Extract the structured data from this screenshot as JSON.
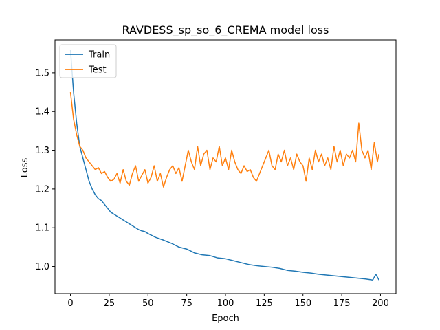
{
  "chart_data": {
    "type": "line",
    "title": "RAVDESS_sp_so_6_CREMA model loss",
    "xlabel": "Epoch",
    "ylabel": "Loss",
    "xlim": [
      -10,
      210
    ],
    "ylim": [
      0.93,
      1.585
    ],
    "xticks": [
      0,
      25,
      50,
      75,
      100,
      125,
      150,
      175,
      200
    ],
    "yticks": [
      1.0,
      1.1,
      1.2,
      1.3,
      1.4,
      1.5
    ],
    "grid": false,
    "legend_position": "upper-left",
    "series": [
      {
        "name": "Train",
        "color": "#1f77b4",
        "x": [
          0,
          2,
          4,
          6,
          8,
          10,
          12,
          14,
          16,
          18,
          20,
          22,
          24,
          26,
          28,
          30,
          32,
          34,
          36,
          38,
          40,
          42,
          44,
          46,
          48,
          50,
          55,
          60,
          65,
          70,
          75,
          80,
          85,
          90,
          95,
          100,
          105,
          110,
          115,
          120,
          125,
          130,
          135,
          140,
          145,
          150,
          155,
          160,
          165,
          170,
          175,
          180,
          185,
          190,
          195,
          197,
          199
        ],
        "values": [
          1.56,
          1.45,
          1.37,
          1.31,
          1.28,
          1.25,
          1.22,
          1.2,
          1.185,
          1.175,
          1.17,
          1.16,
          1.15,
          1.14,
          1.135,
          1.13,
          1.125,
          1.12,
          1.115,
          1.11,
          1.105,
          1.1,
          1.095,
          1.092,
          1.09,
          1.085,
          1.075,
          1.068,
          1.06,
          1.05,
          1.045,
          1.035,
          1.03,
          1.028,
          1.022,
          1.02,
          1.015,
          1.01,
          1.005,
          1.002,
          1.0,
          0.998,
          0.995,
          0.99,
          0.988,
          0.985,
          0.983,
          0.98,
          0.978,
          0.976,
          0.974,
          0.972,
          0.97,
          0.968,
          0.965,
          0.98,
          0.965
        ]
      },
      {
        "name": "Test",
        "color": "#ff7f0e",
        "x": [
          0,
          2,
          4,
          6,
          8,
          10,
          12,
          14,
          16,
          18,
          20,
          22,
          24,
          26,
          28,
          30,
          32,
          34,
          36,
          38,
          40,
          42,
          44,
          46,
          48,
          50,
          52,
          54,
          56,
          58,
          60,
          62,
          64,
          66,
          68,
          70,
          72,
          74,
          76,
          78,
          80,
          82,
          84,
          86,
          88,
          90,
          92,
          94,
          96,
          98,
          100,
          102,
          104,
          106,
          108,
          110,
          112,
          114,
          116,
          118,
          120,
          122,
          124,
          126,
          128,
          130,
          132,
          134,
          136,
          138,
          140,
          142,
          144,
          146,
          148,
          150,
          152,
          154,
          156,
          158,
          160,
          162,
          164,
          166,
          168,
          170,
          172,
          174,
          176,
          178,
          180,
          182,
          184,
          186,
          188,
          190,
          192,
          194,
          196,
          198,
          199
        ],
        "values": [
          1.45,
          1.38,
          1.34,
          1.31,
          1.3,
          1.28,
          1.27,
          1.26,
          1.25,
          1.255,
          1.24,
          1.245,
          1.23,
          1.22,
          1.225,
          1.24,
          1.215,
          1.25,
          1.22,
          1.21,
          1.24,
          1.26,
          1.22,
          1.235,
          1.25,
          1.215,
          1.23,
          1.26,
          1.22,
          1.24,
          1.205,
          1.23,
          1.25,
          1.26,
          1.24,
          1.255,
          1.22,
          1.26,
          1.3,
          1.27,
          1.25,
          1.31,
          1.26,
          1.29,
          1.3,
          1.25,
          1.28,
          1.27,
          1.31,
          1.26,
          1.28,
          1.25,
          1.3,
          1.27,
          1.25,
          1.24,
          1.26,
          1.245,
          1.25,
          1.23,
          1.22,
          1.24,
          1.26,
          1.28,
          1.3,
          1.26,
          1.25,
          1.29,
          1.27,
          1.3,
          1.26,
          1.28,
          1.25,
          1.29,
          1.27,
          1.26,
          1.22,
          1.28,
          1.25,
          1.3,
          1.27,
          1.29,
          1.26,
          1.28,
          1.25,
          1.31,
          1.27,
          1.3,
          1.26,
          1.29,
          1.28,
          1.3,
          1.27,
          1.37,
          1.3,
          1.28,
          1.3,
          1.25,
          1.32,
          1.27,
          1.29
        ]
      }
    ]
  }
}
